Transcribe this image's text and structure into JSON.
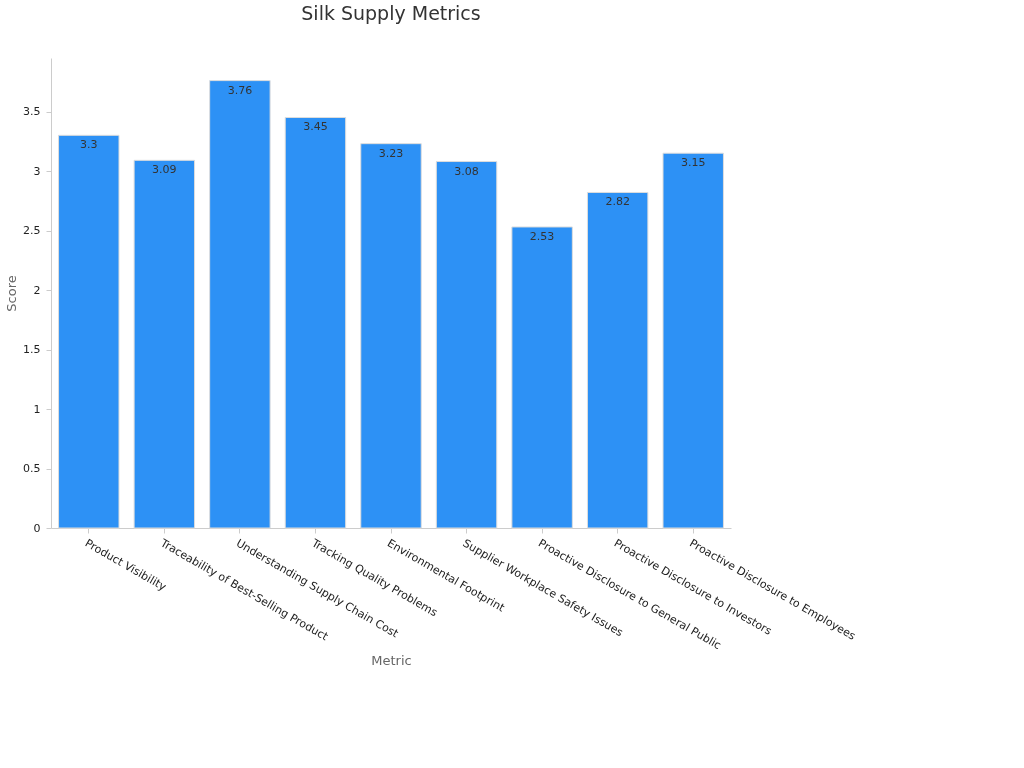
{
  "chart_data": {
    "type": "bar",
    "title": "Silk Supply Metrics",
    "xlabel": "Metric",
    "ylabel": "Score",
    "categories": [
      "Product Visibility",
      "Traceability of Best-Selling Product",
      "Understanding Supply Chain Cost",
      "Tracking Quality Problems",
      "Environmental Footprint",
      "Supplier Workplace Safety Issues",
      "Proactive Disclosure to General Public",
      "Proactive Disclosure to Investors",
      "Proactive Disclosure to Employees"
    ],
    "values": [
      3.3,
      3.09,
      3.76,
      3.45,
      3.23,
      3.08,
      2.53,
      2.82,
      3.15
    ],
    "color": "#2d91f5",
    "ylim": [
      0,
      3.95
    ],
    "yticks": [
      0,
      0.5,
      1,
      1.5,
      2,
      2.5,
      3,
      3.5
    ],
    "grid": false,
    "data_labels": true
  }
}
